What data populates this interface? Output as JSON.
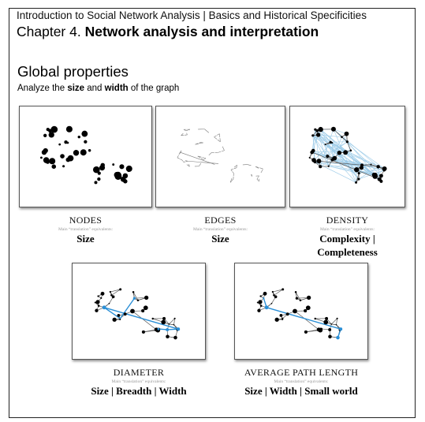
{
  "header": {
    "line1": "Introduction to Social Network Analysis | Basics and Historical Specificities",
    "chapter_prefix": "Chapter 4.",
    "chapter_title": "Network analysis and interpretation"
  },
  "section": {
    "title": "Global properties",
    "subtitle_pre": "Analyze the",
    "subtitle_b1": "size",
    "subtitle_mid": "and",
    "subtitle_b2": "width",
    "subtitle_post": "of the graph"
  },
  "note": "Main “translation” equivalents:",
  "cards": {
    "nodes": {
      "title": "NODES",
      "value": "Size"
    },
    "edges": {
      "title": "EDGES",
      "value": "Size"
    },
    "density": {
      "title": "DENSITY",
      "value_line1": "Complexity |",
      "value_line2": "Completeness"
    },
    "diameter": {
      "title": "DIAMETER",
      "value": "Size | Breadth | Width"
    },
    "apl": {
      "title": "AVERAGE PATH LENGTH",
      "value": "Size | Width | Small world"
    }
  },
  "colors": {
    "highlight": "#2b8fd6",
    "density_edges": "#9ccbe8",
    "edge": "#555555",
    "node": "#000000"
  }
}
